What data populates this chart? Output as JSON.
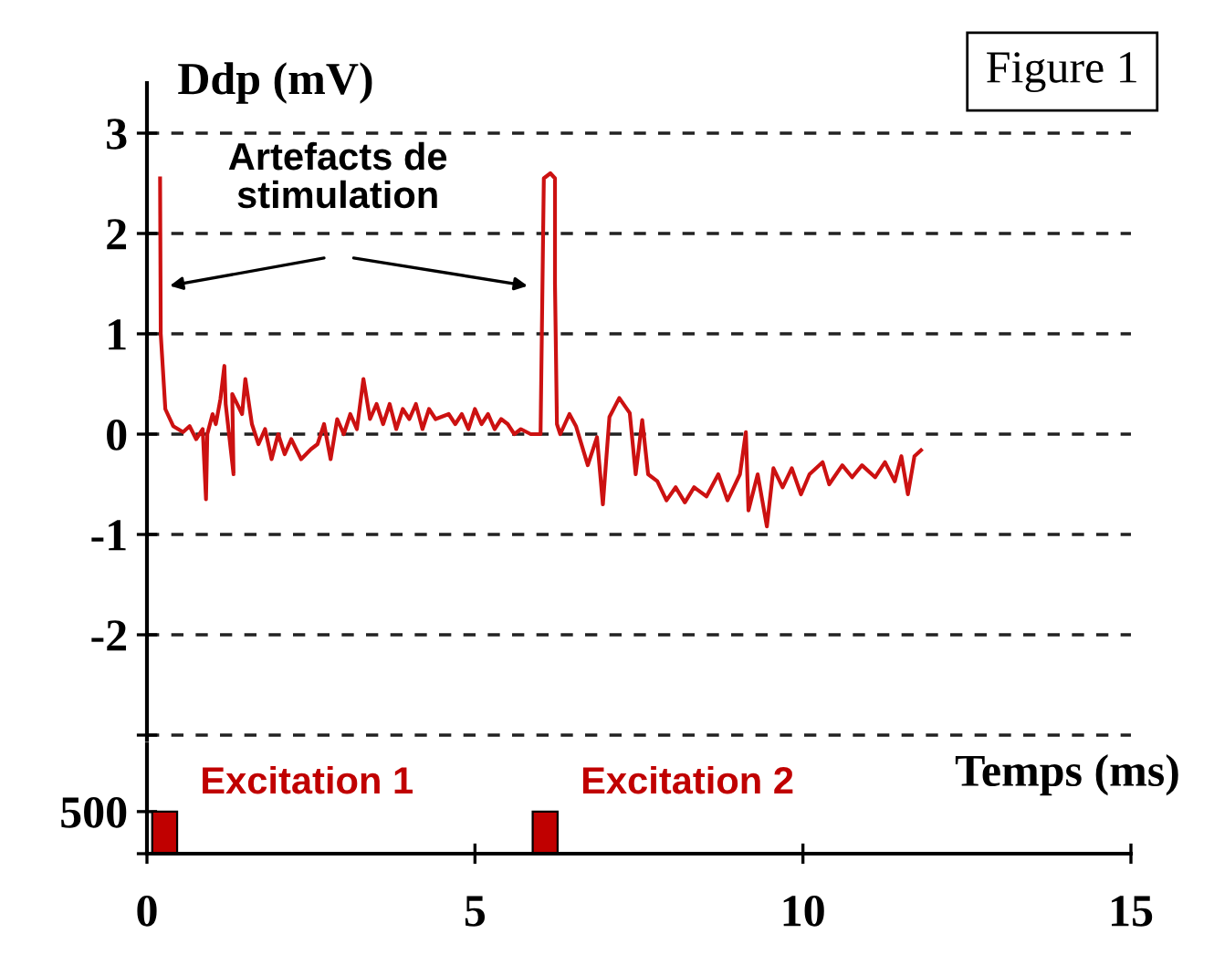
{
  "chart_data": [
    {
      "type": "line",
      "title": "Figure 1",
      "ylabel": "Ddp (mV)",
      "x": [
        0.2,
        0.21,
        0.28,
        0.4,
        0.55,
        0.65,
        0.75,
        0.85,
        0.9,
        0.92,
        1.0,
        1.05,
        1.12,
        1.18,
        1.2,
        1.32,
        1.3,
        1.45,
        1.5,
        1.6,
        1.7,
        1.8,
        1.9,
        2.0,
        2.1,
        2.2,
        2.35,
        2.5,
        2.6,
        2.7,
        2.8,
        2.9,
        3.0,
        3.1,
        3.2,
        3.3,
        3.4,
        3.5,
        3.6,
        3.7,
        3.8,
        3.9,
        4.0,
        4.1,
        4.2,
        4.3,
        4.4,
        4.6,
        4.7,
        4.8,
        4.9,
        5.0,
        5.1,
        5.2,
        5.3,
        5.4,
        5.5,
        5.6,
        5.7,
        5.85,
        6.0,
        6.05,
        6.15,
        6.22,
        6.22,
        6.25,
        6.3,
        6.44,
        6.54,
        6.72,
        6.86,
        6.95,
        7.05,
        7.2,
        7.36,
        7.45,
        7.55,
        7.64,
        7.78,
        7.92,
        8.06,
        8.2,
        8.34,
        8.53,
        8.71,
        8.85,
        9.04,
        9.13,
        9.17,
        9.31,
        9.45,
        9.55,
        9.69,
        9.83,
        9.97,
        10.1,
        10.3,
        10.4,
        10.6,
        10.75,
        10.9,
        11.1,
        11.25,
        11.4,
        11.5,
        11.6,
        11.7,
        11.8
      ],
      "series": [
        {
          "color": "#cc1111",
          "values": [
            2.55,
            1.0,
            0.25,
            0.08,
            0.02,
            0.08,
            -0.05,
            0.05,
            -0.65,
            0.0,
            0.2,
            0.1,
            0.35,
            0.68,
            0.3,
            -0.4,
            0.4,
            0.2,
            0.55,
            0.1,
            -0.1,
            0.05,
            -0.25,
            0.0,
            -0.2,
            -0.05,
            -0.25,
            -0.15,
            -0.1,
            0.1,
            -0.25,
            0.15,
            0.0,
            0.2,
            0.05,
            0.55,
            0.15,
            0.3,
            0.1,
            0.3,
            0.05,
            0.25,
            0.15,
            0.3,
            0.05,
            0.25,
            0.15,
            0.2,
            0.1,
            0.2,
            0.05,
            0.25,
            0.1,
            0.2,
            0.05,
            0.15,
            0.1,
            0.0,
            0.05,
            0.0,
            0.0,
            2.55,
            2.6,
            2.55,
            1.5,
            0.1,
            0.0,
            0.2,
            0.08,
            -0.31,
            -0.03,
            -0.7,
            0.17,
            0.36,
            0.21,
            -0.4,
            0.14,
            -0.4,
            -0.47,
            -0.66,
            -0.53,
            -0.68,
            -0.53,
            -0.62,
            -0.4,
            -0.66,
            -0.4,
            0.02,
            -0.76,
            -0.4,
            -0.92,
            -0.34,
            -0.53,
            -0.34,
            -0.6,
            -0.4,
            -0.28,
            -0.5,
            -0.31,
            -0.43,
            -0.31,
            -0.43,
            -0.28,
            -0.47,
            -0.22,
            -0.6,
            -0.22,
            -0.16
          ]
        }
      ],
      "xlim": [
        0,
        15
      ],
      "ylim": [
        -3.05,
        3.5
      ],
      "yticks": [
        {
          "value": -3,
          "label": null
        },
        -2,
        -1,
        0,
        1,
        2,
        3
      ],
      "grid": "y",
      "tick_labels": "y",
      "annotations": [
        "Artefacts de\nstimulation"
      ]
    },
    {
      "type": "bar",
      "x": [
        0.27,
        6.07
      ],
      "values": [
        500,
        500
      ],
      "color": "#c00000",
      "xlim": [
        0,
        15
      ],
      "xticks": [
        0,
        5,
        10,
        15
      ],
      "ylim": [
        0,
        1300
      ],
      "yticks": [
        {
          "value": 0,
          "label": null
        },
        500
      ],
      "xlabel": "Temps (ms)",
      "annotations": [
        {
          "text": "Excitation 1",
          "x": 0.27,
          "y": 500
        },
        {
          "text": "Excitation 2",
          "x": 6.07,
          "y": 500
        }
      ]
    }
  ]
}
